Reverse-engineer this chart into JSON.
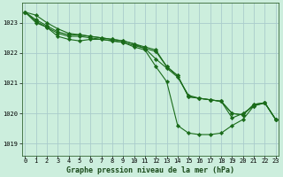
{
  "title": "Graphe pression niveau de la mer (hPa)",
  "background_color": "#cceedd",
  "grid_color": "#aacccc",
  "line_color": "#1a6b1a",
  "spine_color": "#336633",
  "xlim": [
    -0.3,
    23.3
  ],
  "ylim": [
    1018.6,
    1023.65
  ],
  "yticks": [
    1019,
    1020,
    1021,
    1022,
    1023
  ],
  "xticks": [
    0,
    1,
    2,
    3,
    4,
    5,
    6,
    7,
    8,
    9,
    10,
    11,
    12,
    13,
    14,
    15,
    16,
    17,
    18,
    19,
    20,
    21,
    22,
    23
  ],
  "series": [
    [
      1023.35,
      1023.25,
      1023.0,
      1022.8,
      1022.65,
      1022.6,
      1022.55,
      1022.5,
      1022.45,
      1022.4,
      1022.3,
      1022.15,
      1021.8,
      1021.5,
      1021.2,
      1020.6,
      1020.5,
      1020.45,
      1020.4,
      1019.85,
      1020.0,
      1020.25,
      1020.35,
      1019.8
    ],
    [
      1023.35,
      1023.0,
      1022.85,
      1022.55,
      1022.45,
      1022.4,
      1022.45,
      1022.45,
      1022.4,
      1022.35,
      1022.2,
      1022.1,
      1021.55,
      1021.05,
      1019.6,
      1019.35,
      1019.3,
      1019.3,
      1019.35,
      1019.6,
      1019.8,
      1020.25,
      1020.35,
      1019.8
    ],
    [
      1023.35,
      1023.05,
      1022.85,
      1022.65,
      1022.55,
      1022.55,
      1022.5,
      1022.45,
      1022.4,
      1022.35,
      1022.25,
      1022.15,
      1022.05,
      1021.55,
      1021.25,
      1020.55,
      1020.5,
      1020.45,
      1020.4,
      1020.0,
      1019.95,
      1020.3,
      1020.35,
      1019.8
    ],
    [
      1023.35,
      1023.1,
      1022.9,
      1022.7,
      1022.6,
      1022.6,
      1022.55,
      1022.5,
      1022.45,
      1022.4,
      1022.3,
      1022.2,
      1022.1,
      1021.55,
      1021.25,
      1020.55,
      1020.5,
      1020.45,
      1020.4,
      1020.0,
      1019.95,
      1020.3,
      1020.35,
      1019.8
    ]
  ],
  "title_fontsize": 6.0,
  "tick_fontsize": 5.0,
  "linewidth": 0.8,
  "markersize": 2.2
}
